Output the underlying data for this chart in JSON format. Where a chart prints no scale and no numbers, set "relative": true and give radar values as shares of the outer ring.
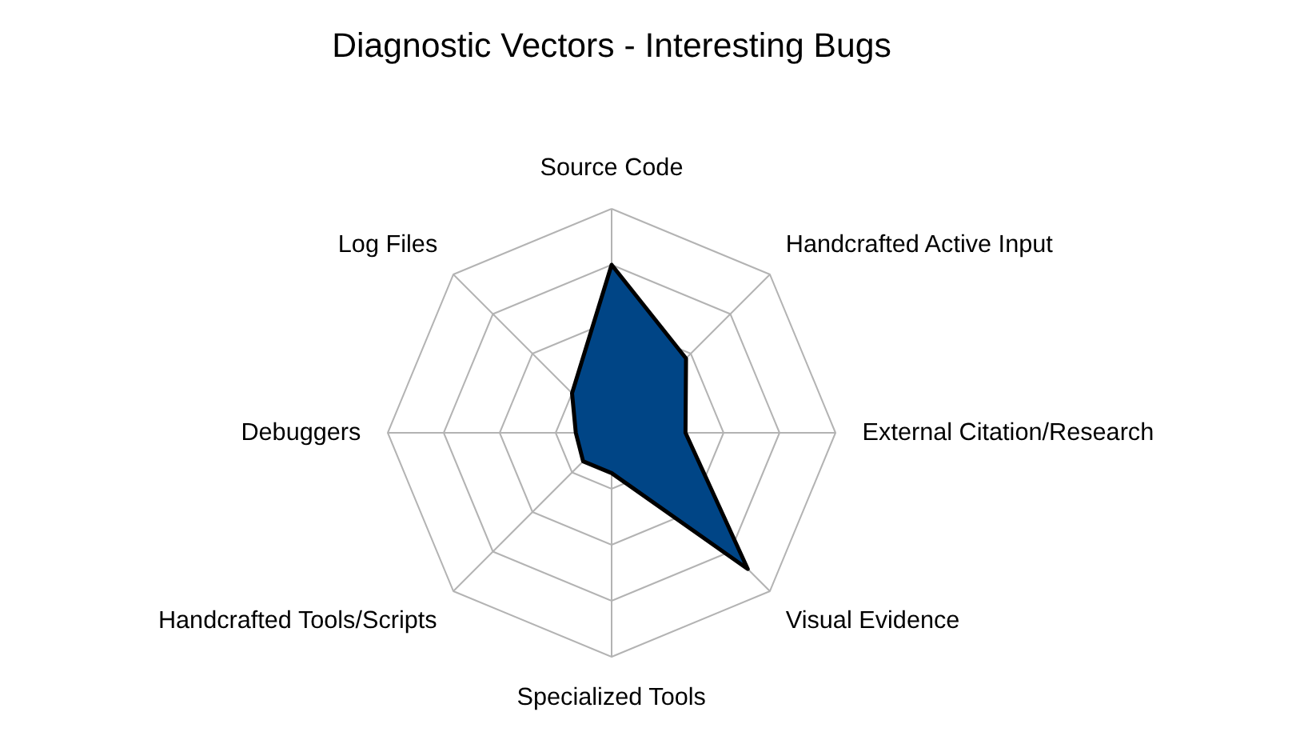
{
  "chart_data": {
    "type": "radar",
    "title": "Diagnostic Vectors - Interesting Bugs",
    "relative": true,
    "grid": true,
    "categories": [
      "Source Code",
      "Handcrafted Active Input",
      "External Citation/Research",
      "Visual Evidence",
      "Specialized Tools",
      "Handcrafted Tools/Scripts",
      "Debuggers",
      "Log Files"
    ],
    "series": [
      {
        "color": "#004586",
        "values": [
          0.75,
          0.47,
          0.33,
          0.86,
          0.18,
          0.18,
          0.16,
          0.25
        ]
      }
    ]
  }
}
